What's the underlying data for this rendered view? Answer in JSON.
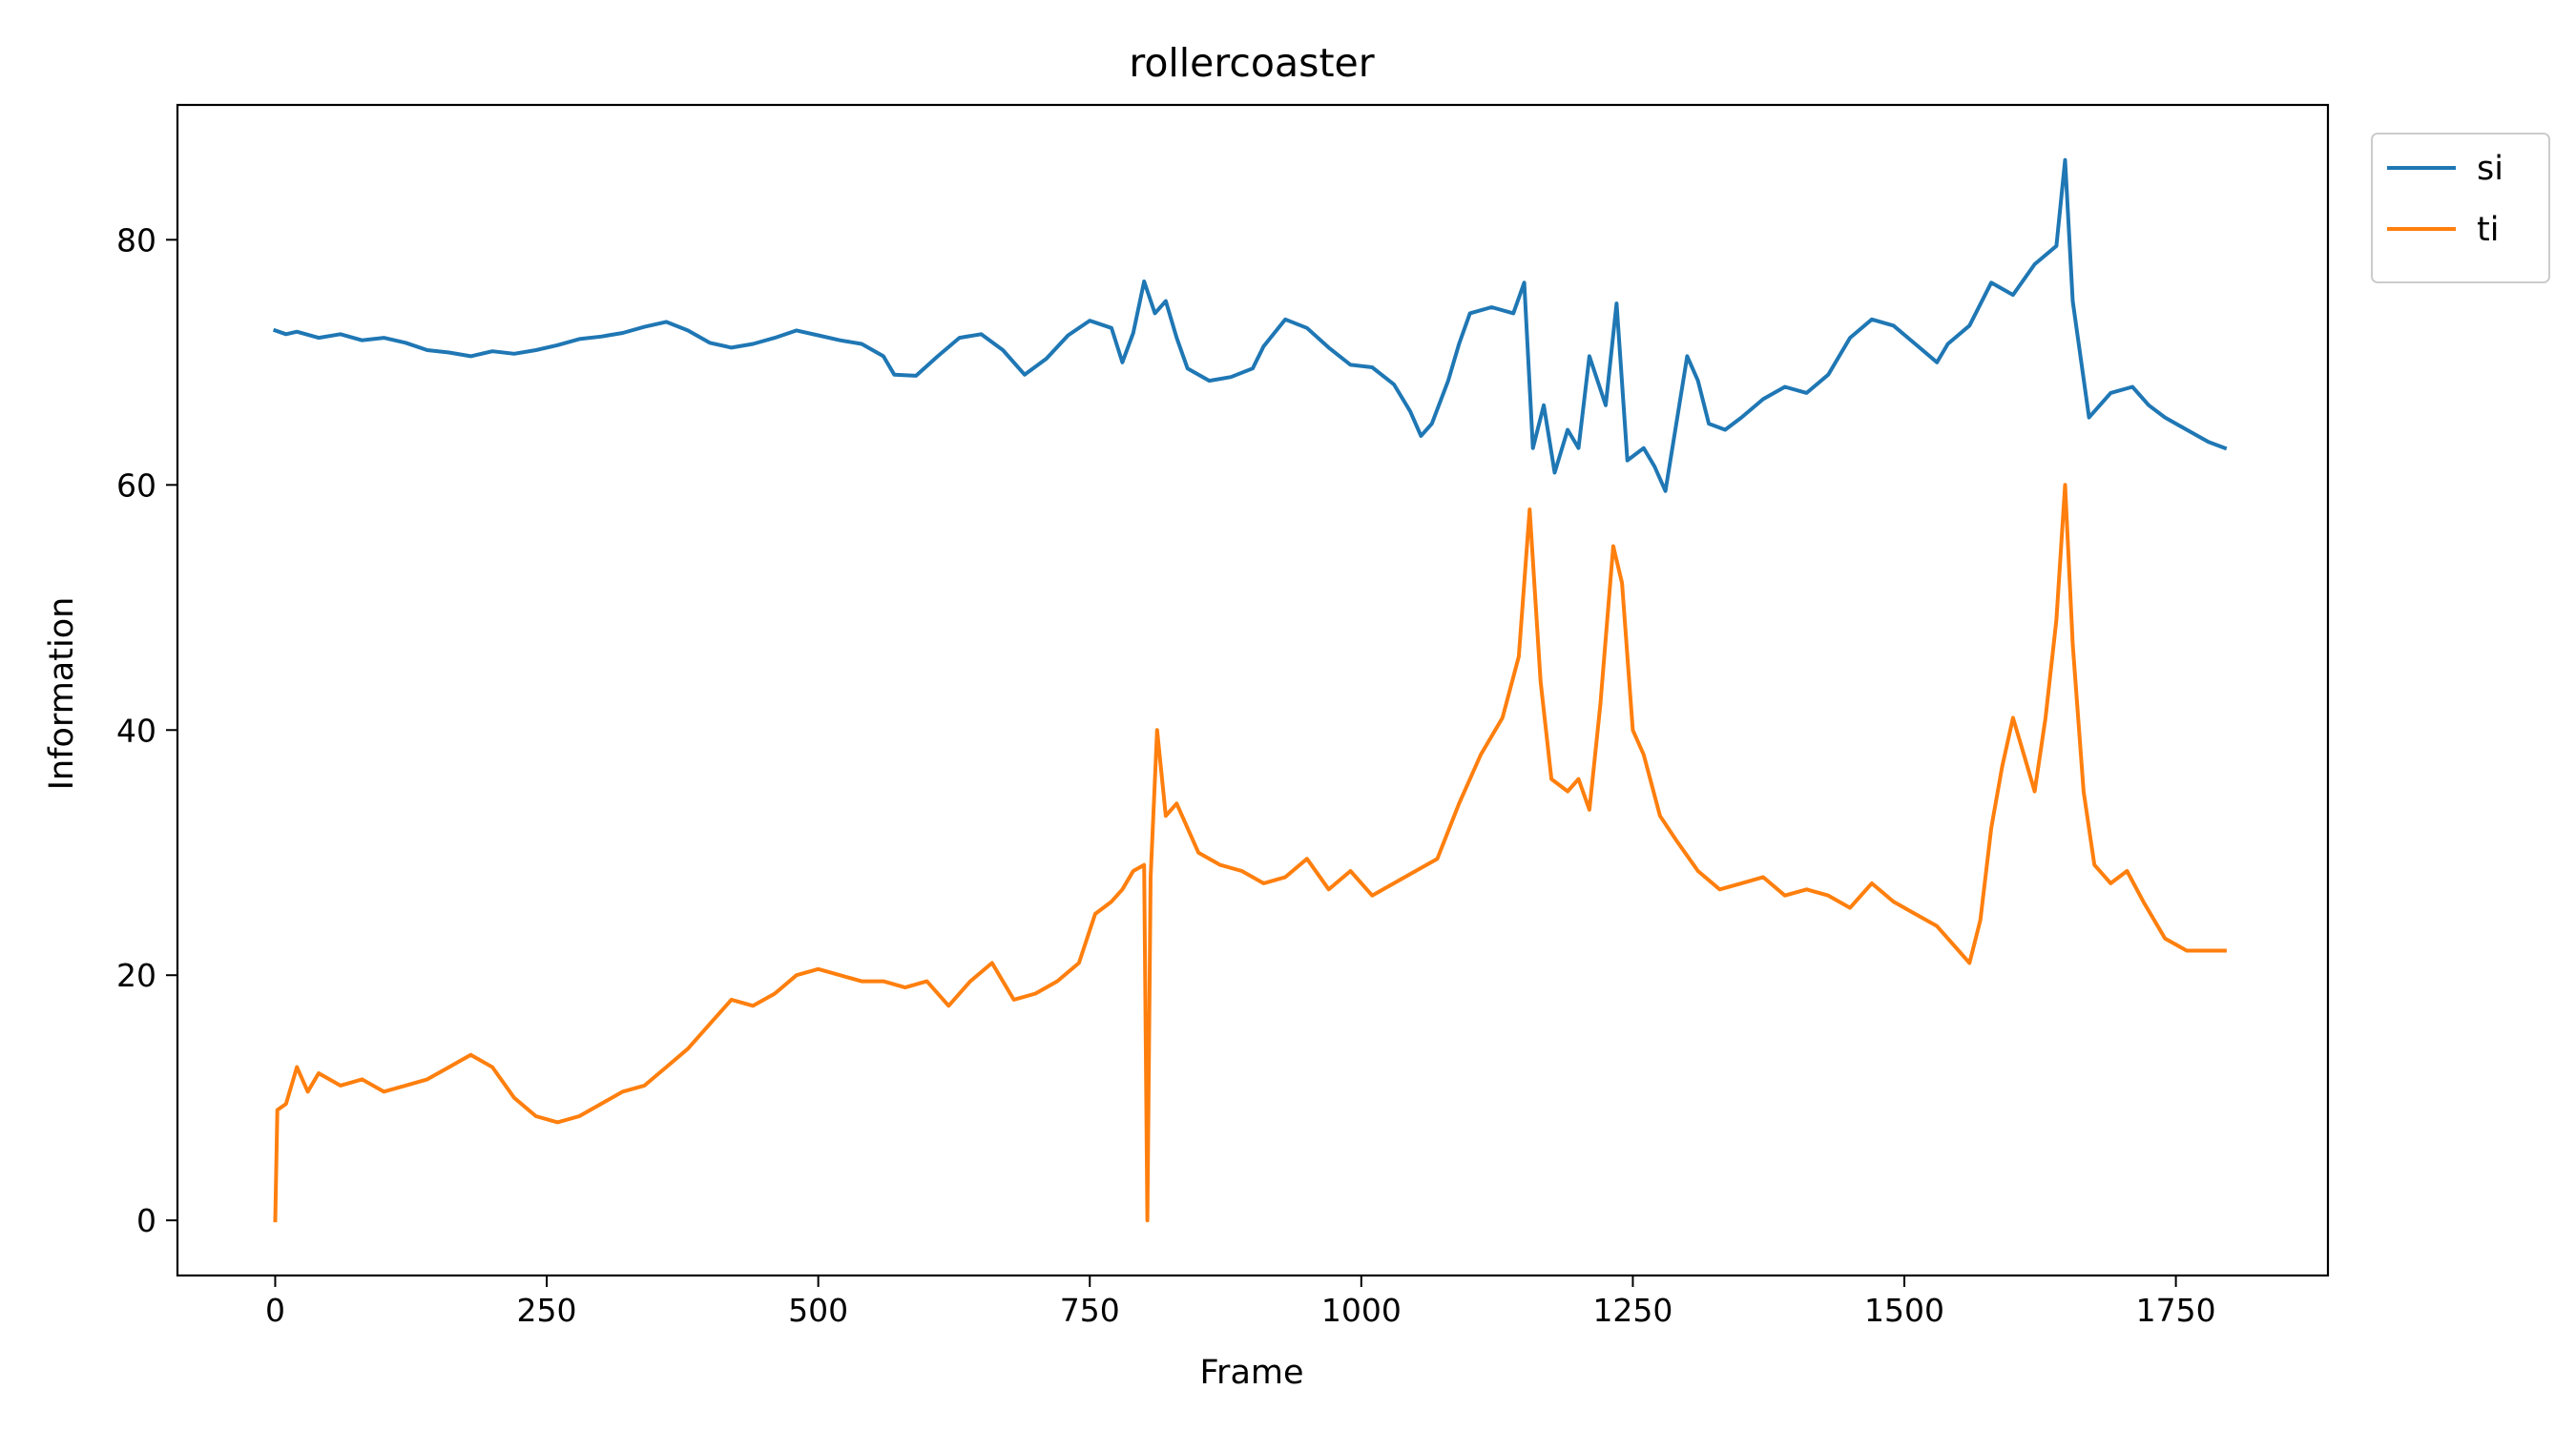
{
  "chart_data": {
    "type": "line",
    "title": "rollercoaster",
    "xlabel": "Frame",
    "ylabel": "Information",
    "xlim": [
      -90,
      1890
    ],
    "ylim": [
      -4.5,
      91
    ],
    "xticks": [
      0,
      250,
      500,
      750,
      1000,
      1250,
      1500,
      1750
    ],
    "yticks": [
      0,
      20,
      40,
      60,
      80
    ],
    "grid": false,
    "legend_position": "outside-top-right",
    "series": [
      {
        "name": "si",
        "color": "#1f77b4",
        "points": [
          [
            0,
            72.6
          ],
          [
            10,
            72.3
          ],
          [
            20,
            72.5
          ],
          [
            40,
            72.0
          ],
          [
            60,
            72.3
          ],
          [
            80,
            71.8
          ],
          [
            100,
            72.0
          ],
          [
            120,
            71.6
          ],
          [
            140,
            71.0
          ],
          [
            160,
            70.8
          ],
          [
            180,
            70.5
          ],
          [
            200,
            70.9
          ],
          [
            220,
            70.7
          ],
          [
            240,
            71.0
          ],
          [
            260,
            71.4
          ],
          [
            280,
            71.9
          ],
          [
            300,
            72.1
          ],
          [
            320,
            72.4
          ],
          [
            340,
            72.9
          ],
          [
            360,
            73.3
          ],
          [
            380,
            72.6
          ],
          [
            400,
            71.6
          ],
          [
            420,
            71.2
          ],
          [
            440,
            71.5
          ],
          [
            460,
            72.0
          ],
          [
            480,
            72.6
          ],
          [
            500,
            72.2
          ],
          [
            520,
            71.8
          ],
          [
            540,
            71.5
          ],
          [
            560,
            70.5
          ],
          [
            570,
            69.0
          ],
          [
            590,
            68.9
          ],
          [
            610,
            70.5
          ],
          [
            630,
            72.0
          ],
          [
            650,
            72.3
          ],
          [
            670,
            71.0
          ],
          [
            690,
            69.0
          ],
          [
            710,
            70.3
          ],
          [
            730,
            72.2
          ],
          [
            750,
            73.4
          ],
          [
            770,
            72.8
          ],
          [
            780,
            70.0
          ],
          [
            790,
            72.4
          ],
          [
            800,
            76.6
          ],
          [
            810,
            74.0
          ],
          [
            820,
            75.0
          ],
          [
            830,
            72.0
          ],
          [
            840,
            69.5
          ],
          [
            860,
            68.5
          ],
          [
            880,
            68.8
          ],
          [
            900,
            69.5
          ],
          [
            910,
            71.3
          ],
          [
            930,
            73.5
          ],
          [
            950,
            72.8
          ],
          [
            970,
            71.2
          ],
          [
            990,
            69.8
          ],
          [
            1010,
            69.6
          ],
          [
            1030,
            68.2
          ],
          [
            1045,
            66.0
          ],
          [
            1055,
            64.0
          ],
          [
            1065,
            65.0
          ],
          [
            1080,
            68.5
          ],
          [
            1090,
            71.5
          ],
          [
            1100,
            74.0
          ],
          [
            1120,
            74.5
          ],
          [
            1140,
            74.0
          ],
          [
            1150,
            76.5
          ],
          [
            1158,
            63.0
          ],
          [
            1168,
            66.5
          ],
          [
            1178,
            61.0
          ],
          [
            1190,
            64.5
          ],
          [
            1200,
            63.0
          ],
          [
            1210,
            70.5
          ],
          [
            1225,
            66.5
          ],
          [
            1235,
            74.8
          ],
          [
            1245,
            62.0
          ],
          [
            1260,
            63.0
          ],
          [
            1270,
            61.5
          ],
          [
            1280,
            59.5
          ],
          [
            1290,
            65.0
          ],
          [
            1300,
            70.5
          ],
          [
            1310,
            68.5
          ],
          [
            1320,
            65.0
          ],
          [
            1335,
            64.5
          ],
          [
            1350,
            65.5
          ],
          [
            1370,
            67.0
          ],
          [
            1390,
            68.0
          ],
          [
            1410,
            67.5
          ],
          [
            1430,
            69.0
          ],
          [
            1450,
            72.0
          ],
          [
            1470,
            73.5
          ],
          [
            1490,
            73.0
          ],
          [
            1510,
            71.5
          ],
          [
            1530,
            70.0
          ],
          [
            1540,
            71.5
          ],
          [
            1560,
            73.0
          ],
          [
            1580,
            76.5
          ],
          [
            1600,
            75.5
          ],
          [
            1620,
            78.0
          ],
          [
            1640,
            79.5
          ],
          [
            1648,
            86.5
          ],
          [
            1655,
            75.0
          ],
          [
            1670,
            65.5
          ],
          [
            1690,
            67.5
          ],
          [
            1710,
            68.0
          ],
          [
            1725,
            66.5
          ],
          [
            1740,
            65.5
          ],
          [
            1760,
            64.5
          ],
          [
            1780,
            63.5
          ],
          [
            1795,
            63.0
          ]
        ]
      },
      {
        "name": "ti",
        "color": "#ff7f0e",
        "points": [
          [
            0,
            0
          ],
          [
            2,
            9
          ],
          [
            10,
            9.5
          ],
          [
            20,
            12.5
          ],
          [
            30,
            10.5
          ],
          [
            40,
            12.0
          ],
          [
            60,
            11.0
          ],
          [
            80,
            11.5
          ],
          [
            100,
            10.5
          ],
          [
            120,
            11.0
          ],
          [
            140,
            11.5
          ],
          [
            160,
            12.5
          ],
          [
            180,
            13.5
          ],
          [
            200,
            12.5
          ],
          [
            220,
            10.0
          ],
          [
            240,
            8.5
          ],
          [
            260,
            8.0
          ],
          [
            280,
            8.5
          ],
          [
            300,
            9.5
          ],
          [
            320,
            10.5
          ],
          [
            340,
            11.0
          ],
          [
            360,
            12.5
          ],
          [
            380,
            14.0
          ],
          [
            400,
            16.0
          ],
          [
            420,
            18.0
          ],
          [
            440,
            17.5
          ],
          [
            460,
            18.5
          ],
          [
            480,
            20.0
          ],
          [
            500,
            20.5
          ],
          [
            520,
            20.0
          ],
          [
            540,
            19.5
          ],
          [
            560,
            19.5
          ],
          [
            580,
            19.0
          ],
          [
            600,
            19.5
          ],
          [
            620,
            17.5
          ],
          [
            640,
            19.5
          ],
          [
            660,
            21.0
          ],
          [
            680,
            18.0
          ],
          [
            700,
            18.5
          ],
          [
            720,
            19.5
          ],
          [
            740,
            21.0
          ],
          [
            755,
            25.0
          ],
          [
            770,
            26.0
          ],
          [
            780,
            27.0
          ],
          [
            790,
            28.5
          ],
          [
            800,
            29.0
          ],
          [
            803,
            0
          ],
          [
            806,
            28.0
          ],
          [
            812,
            40.0
          ],
          [
            820,
            33.0
          ],
          [
            830,
            34.0
          ],
          [
            850,
            30.0
          ],
          [
            870,
            29.0
          ],
          [
            890,
            28.5
          ],
          [
            910,
            27.5
          ],
          [
            930,
            28.0
          ],
          [
            950,
            29.5
          ],
          [
            970,
            27.0
          ],
          [
            990,
            28.5
          ],
          [
            1010,
            26.5
          ],
          [
            1030,
            27.5
          ],
          [
            1050,
            28.5
          ],
          [
            1070,
            29.5
          ],
          [
            1090,
            34.0
          ],
          [
            1110,
            38.0
          ],
          [
            1130,
            41.0
          ],
          [
            1145,
            46.0
          ],
          [
            1155,
            58.0
          ],
          [
            1165,
            44.0
          ],
          [
            1175,
            36.0
          ],
          [
            1190,
            35.0
          ],
          [
            1200,
            36.0
          ],
          [
            1210,
            33.5
          ],
          [
            1220,
            42.0
          ],
          [
            1232,
            55.0
          ],
          [
            1240,
            52.0
          ],
          [
            1250,
            40.0
          ],
          [
            1260,
            38.0
          ],
          [
            1275,
            33.0
          ],
          [
            1290,
            31.0
          ],
          [
            1310,
            28.5
          ],
          [
            1330,
            27.0
          ],
          [
            1350,
            27.5
          ],
          [
            1370,
            28.0
          ],
          [
            1390,
            26.5
          ],
          [
            1410,
            27.0
          ],
          [
            1430,
            26.5
          ],
          [
            1450,
            25.5
          ],
          [
            1470,
            27.5
          ],
          [
            1490,
            26.0
          ],
          [
            1510,
            25.0
          ],
          [
            1530,
            24.0
          ],
          [
            1550,
            22.0
          ],
          [
            1560,
            21.0
          ],
          [
            1570,
            24.5
          ],
          [
            1580,
            32.0
          ],
          [
            1590,
            37.0
          ],
          [
            1600,
            41.0
          ],
          [
            1610,
            38.0
          ],
          [
            1620,
            35.0
          ],
          [
            1630,
            41.0
          ],
          [
            1640,
            49.0
          ],
          [
            1648,
            60.0
          ],
          [
            1655,
            47.0
          ],
          [
            1665,
            35.0
          ],
          [
            1675,
            29.0
          ],
          [
            1690,
            27.5
          ],
          [
            1705,
            28.5
          ],
          [
            1720,
            26.0
          ],
          [
            1740,
            23.0
          ],
          [
            1760,
            22.0
          ],
          [
            1780,
            22.0
          ],
          [
            1795,
            22.0
          ]
        ]
      }
    ]
  }
}
